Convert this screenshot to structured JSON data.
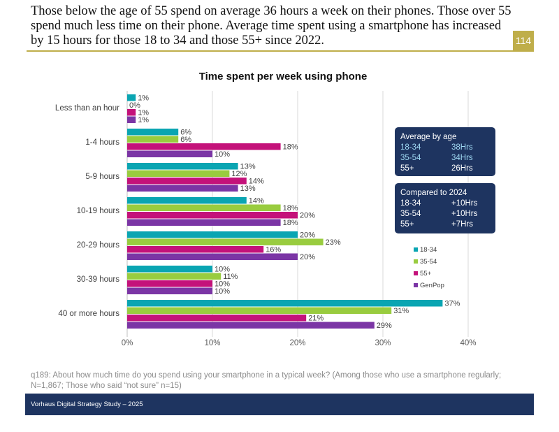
{
  "header": {
    "text": "Those below the age of 55 spend on average 36 hours a week on their phones. Those over 55 spend much less time on their phone. Average time spent using a smartphone has increased by 15 hours for those 18 to 34 and those 55+ since 2022.",
    "page_number": "114"
  },
  "chart_data": {
    "type": "bar",
    "orientation": "horizontal",
    "title": "Time spent per week using phone",
    "categories": [
      "Less than an hour",
      "1-4 hours",
      "5-9 hours",
      "10-19 hours",
      "20-29 hours",
      "30-39 hours",
      "40 or more hours"
    ],
    "series": [
      {
        "name": "18-34",
        "color": "#0aa5b2",
        "values": [
          1,
          6,
          13,
          14,
          20,
          10,
          37
        ]
      },
      {
        "name": "35-54",
        "color": "#99cc3f",
        "values": [
          0,
          6,
          12,
          18,
          23,
          11,
          31
        ]
      },
      {
        "name": "55+",
        "color": "#c4127a",
        "values": [
          1,
          18,
          14,
          20,
          16,
          10,
          21
        ]
      },
      {
        "name": "GenPop",
        "color": "#7b35a5",
        "values": [
          1,
          10,
          13,
          18,
          20,
          10,
          29
        ]
      }
    ],
    "xlim": [
      0,
      40
    ],
    "xticks": [
      "0%",
      "10%",
      "20%",
      "30%",
      "40%"
    ],
    "grid": true,
    "legend_position": "right"
  },
  "callouts": {
    "average": {
      "title": "Average by age",
      "rows": [
        {
          "label": "18-34",
          "value": "38Hrs"
        },
        {
          "label": "35-54",
          "value": "34Hrs"
        },
        {
          "label": "55+",
          "value": "26Hrs"
        }
      ]
    },
    "compared": {
      "title": "Compared to 2024",
      "rows": [
        {
          "label": "18-34",
          "value": "+10Hrs"
        },
        {
          "label": "35-54",
          "value": "+10Hrs"
        },
        {
          "label": "55+",
          "value": "+7Hrs"
        }
      ]
    },
    "colors": {
      "box": "#1e3460",
      "highlight": "#9fd8f2",
      "text": "#ffffff"
    }
  },
  "footnote": "q189: About how much time do you spend using your smartphone in a typical week? (Among those who use a smartphone regularly; N=1,867; Those who said “not sure” n=15)",
  "footer": {
    "label": "Vorhaus Digital Strategy Study – 2025"
  }
}
